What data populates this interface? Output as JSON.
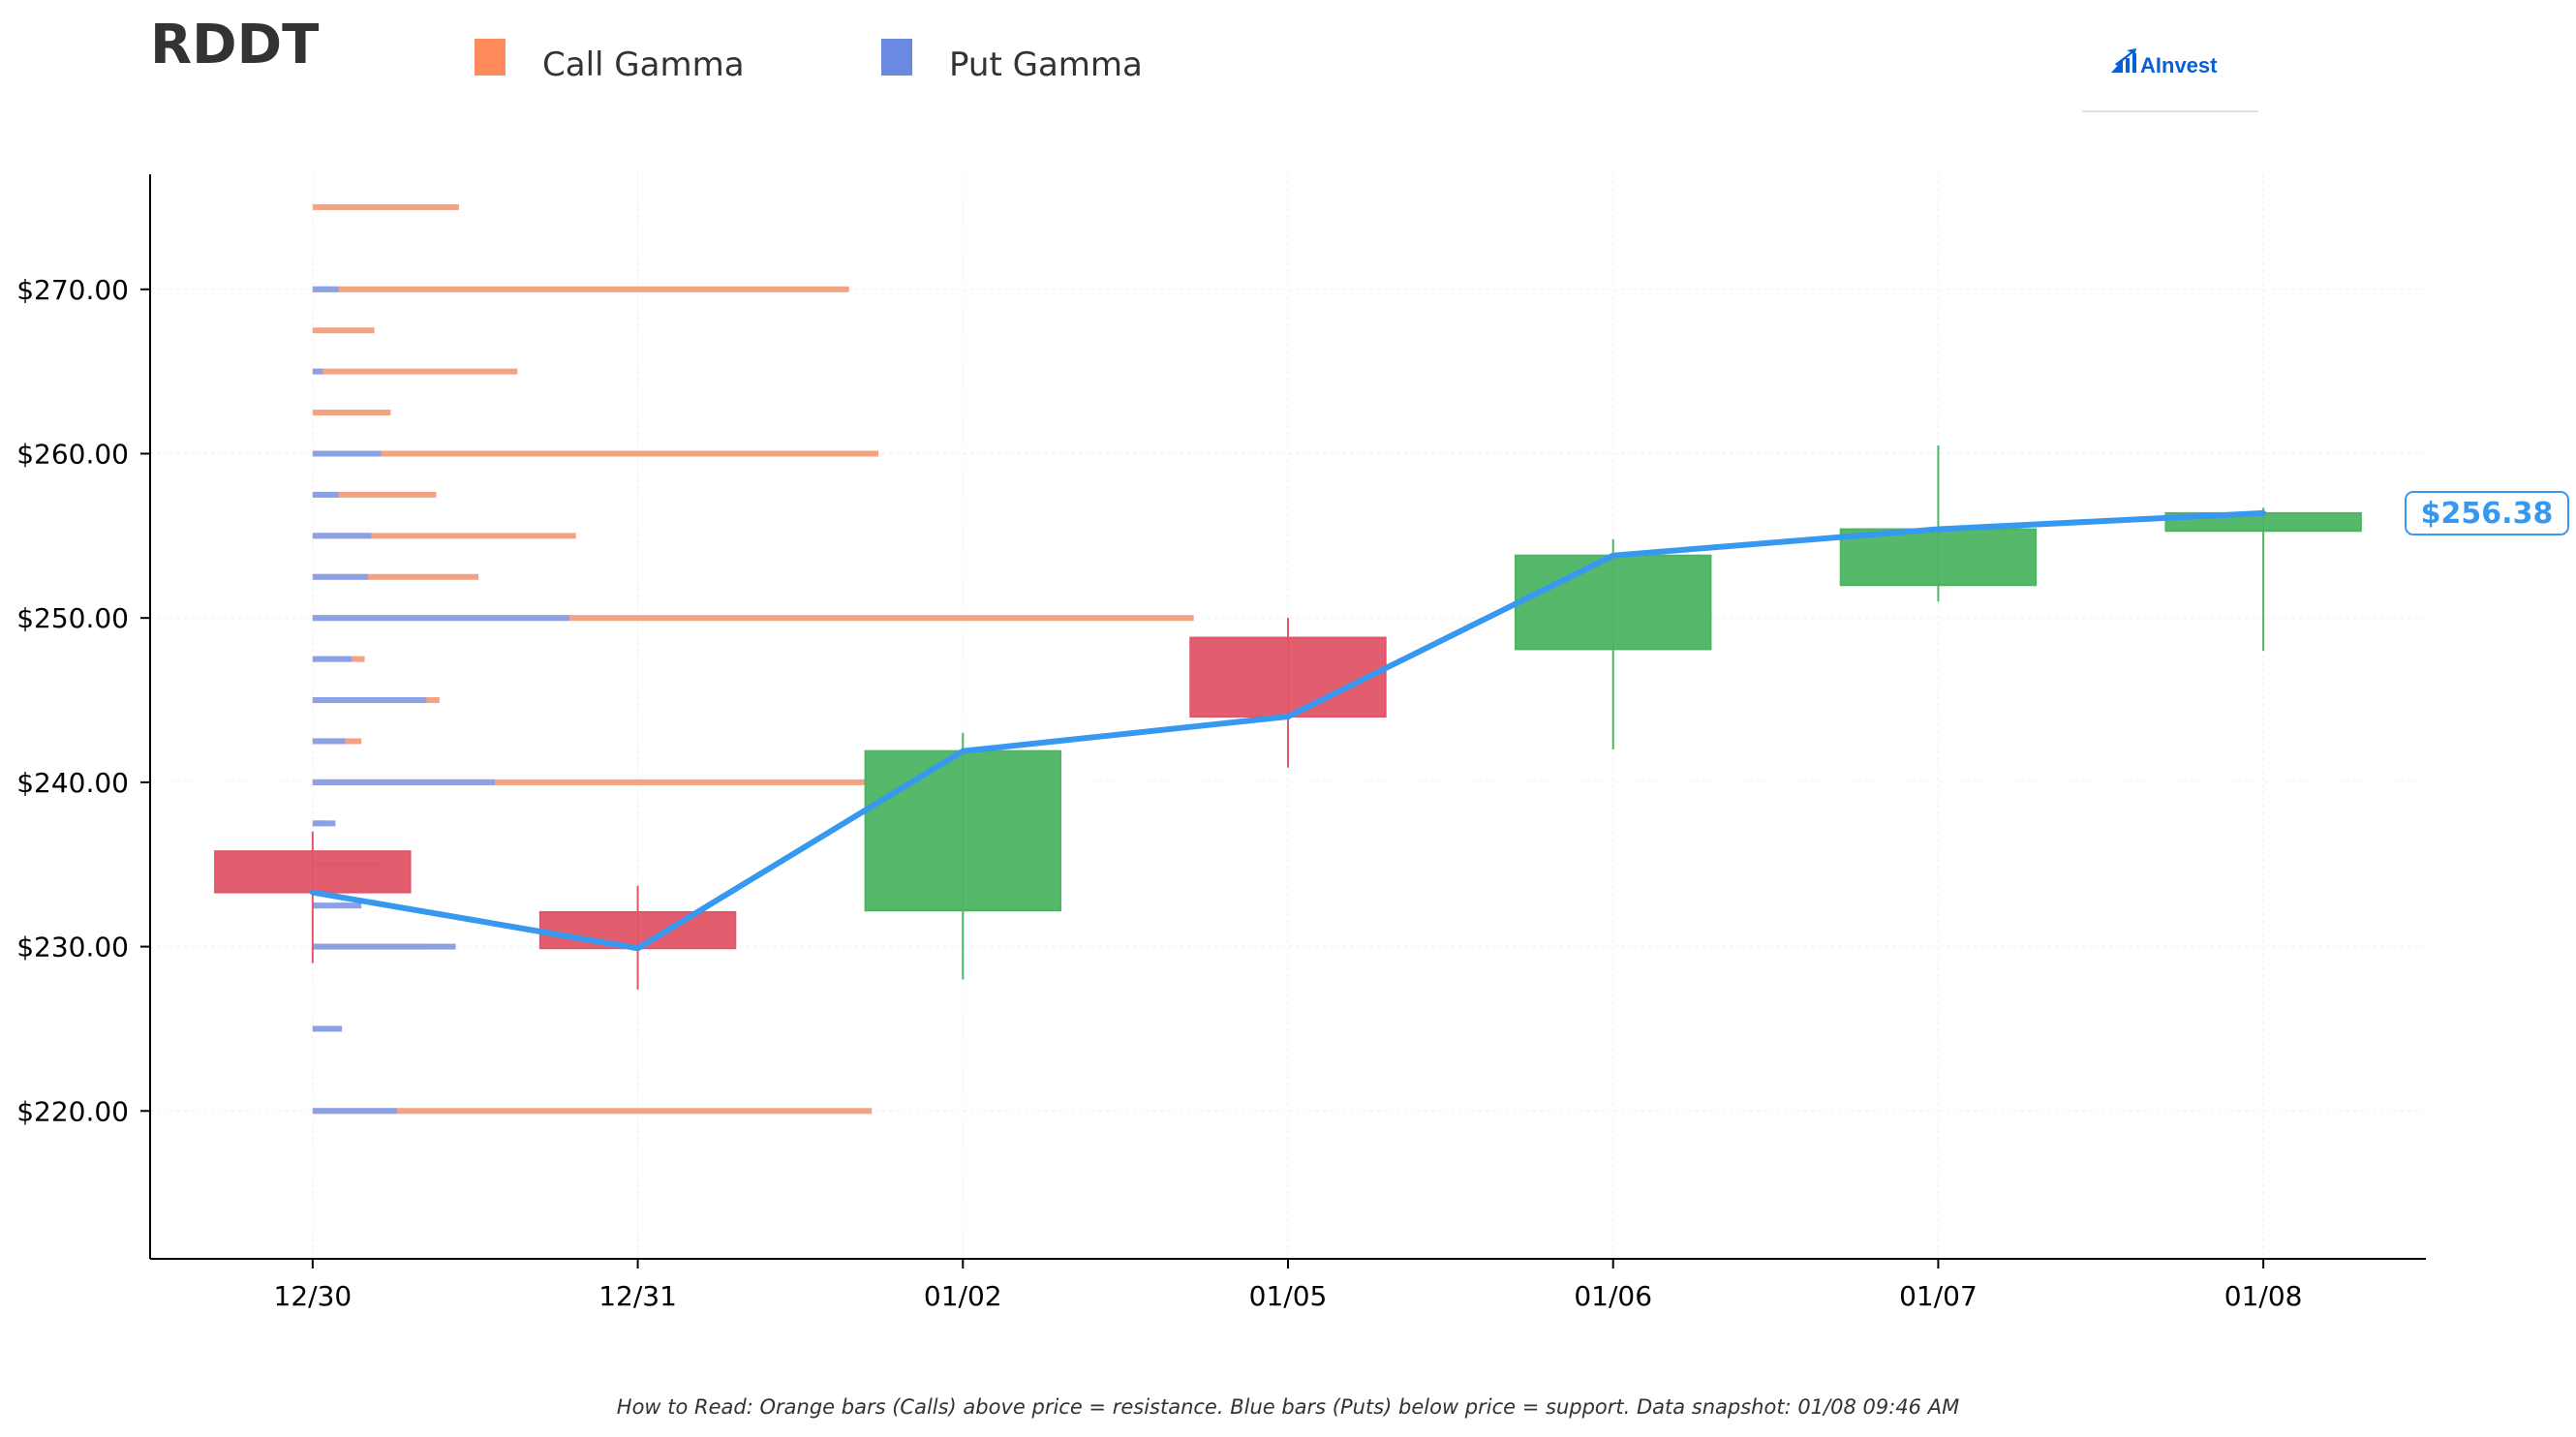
{
  "ticker": "RDDT",
  "logo": {
    "text": "AInvest",
    "icon": "chart-bars-icon"
  },
  "legend": {
    "call_label": "Call Gamma",
    "put_label": "Put Gamma"
  },
  "colors": {
    "call": "#f4a282",
    "call_legend": "#ff8a5b",
    "put": "#8ba1e6",
    "put_legend": "#6b88e3",
    "up": "#4db463",
    "down": "#e05567",
    "price_line": "#3798ef",
    "axis": "#000000",
    "grid": "#eeeeee",
    "logo": "#0a5fd6"
  },
  "last_price_label": "$256.38",
  "footnote": "How to Read: Orange bars (Calls) above price = resistance. Blue bars (Puts) below price = support. Data snapshot: 01/08 09:46 AM",
  "chart_data": {
    "type": "candlestick",
    "dates": [
      "12/30",
      "12/31",
      "01/02",
      "01/05",
      "01/06",
      "01/07",
      "01/08"
    ],
    "candles": [
      {
        "date": "12/30",
        "open": 235.8,
        "high": 237.0,
        "low": 229.0,
        "close": 233.3
      },
      {
        "date": "12/31",
        "open": 232.1,
        "high": 233.7,
        "low": 227.4,
        "close": 229.9
      },
      {
        "date": "01/02",
        "open": 232.2,
        "high": 243.0,
        "low": 228.0,
        "close": 241.9
      },
      {
        "date": "01/05",
        "open": 248.8,
        "high": 250.0,
        "low": 240.9,
        "close": 244.0
      },
      {
        "date": "01/06",
        "open": 248.1,
        "high": 254.8,
        "low": 242.0,
        "close": 253.8
      },
      {
        "date": "01/07",
        "open": 252.0,
        "high": 260.5,
        "low": 251.0,
        "close": 255.4
      },
      {
        "date": "01/08",
        "open": 255.3,
        "high": 256.7,
        "low": 248.0,
        "close": 256.38
      }
    ],
    "price_line": [
      233.3,
      229.9,
      241.9,
      244.0,
      253.8,
      255.4,
      256.38
    ],
    "gamma_x_unit": "trading-day index (0 = 12/30)",
    "gamma": [
      {
        "strike": 275.0,
        "call": 0.45,
        "put": 0
      },
      {
        "strike": 270.0,
        "call": 1.65,
        "put": 0.08
      },
      {
        "strike": 267.5,
        "call": 0.19,
        "put": 0
      },
      {
        "strike": 265.0,
        "call": 0.63,
        "put": 0.03
      },
      {
        "strike": 262.5,
        "call": 0.24,
        "put": 0
      },
      {
        "strike": 260.0,
        "call": 1.74,
        "put": 0.21
      },
      {
        "strike": 257.5,
        "call": 0.38,
        "put": 0.08
      },
      {
        "strike": 255.0,
        "call": 0.81,
        "put": 0.18
      },
      {
        "strike": 252.5,
        "call": 0.51,
        "put": 0.17
      },
      {
        "strike": 250.0,
        "call": 2.71,
        "put": 0.79
      },
      {
        "strike": 247.5,
        "call": 0.16,
        "put": 0.12
      },
      {
        "strike": 245.0,
        "call": 0.39,
        "put": 0.35
      },
      {
        "strike": 242.5,
        "call": 0.15,
        "put": 0.1
      },
      {
        "strike": 240.0,
        "call": 1.7,
        "put": 0.56
      },
      {
        "strike": 237.5,
        "call": 0.04,
        "put": 0.07
      },
      {
        "strike": 235.0,
        "call": 0.14,
        "put": 0.21
      },
      {
        "strike": 232.5,
        "call": 0.02,
        "put": 0.15
      },
      {
        "strike": 230.0,
        "call": 0.35,
        "put": 0.44
      },
      {
        "strike": 225.0,
        "call": 0.01,
        "put": 0.09
      },
      {
        "strike": 220.0,
        "call": 1.72,
        "put": 0.26
      }
    ],
    "y_ticks": [
      "$220.00",
      "$230.00",
      "$240.00",
      "$250.00",
      "$260.00",
      "$270.00"
    ],
    "y_tick_values": [
      220,
      230,
      240,
      250,
      260,
      270
    ],
    "ylim": [
      211,
      277
    ],
    "xlim": [
      -0.5,
      6.5
    ],
    "grid": true
  }
}
